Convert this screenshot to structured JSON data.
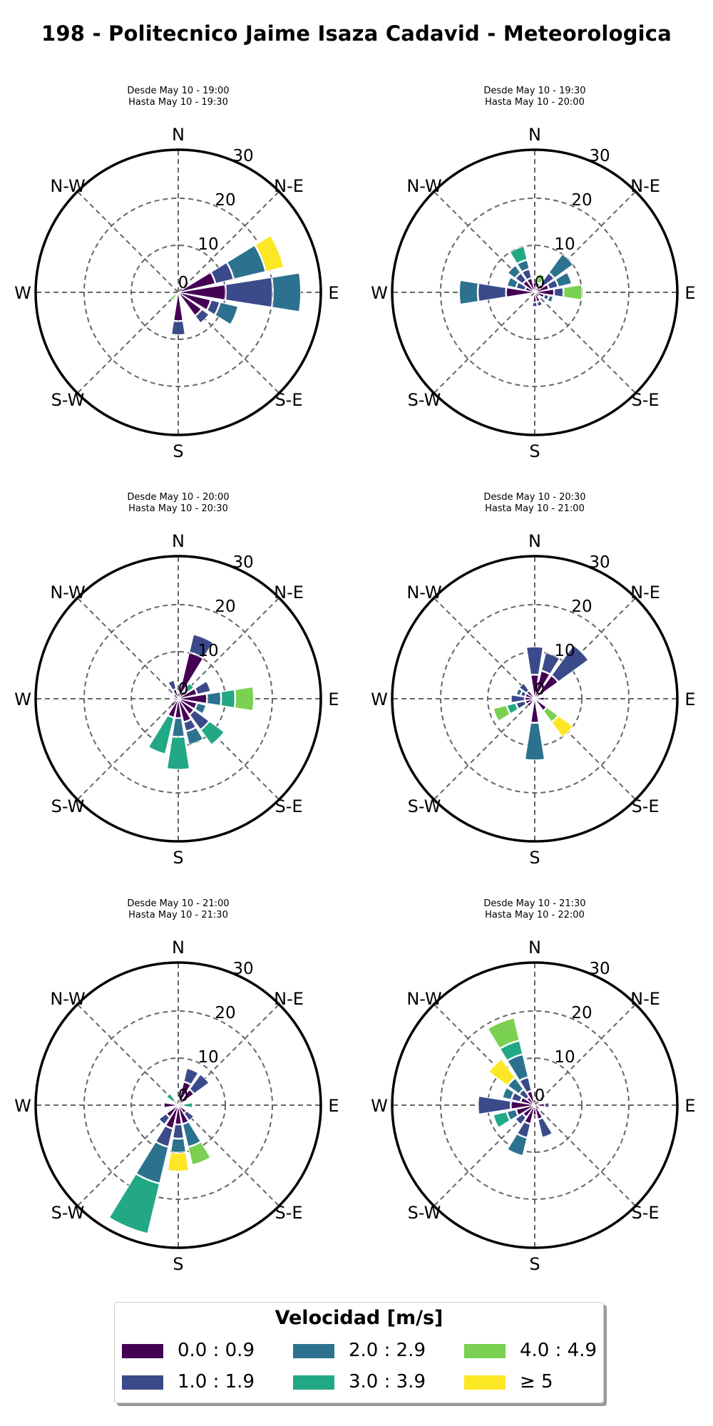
{
  "title": "198 - Politecnico Jaime Isaza Cadavid - Meteorologica",
  "compass_labels": [
    "N",
    "N-E",
    "E",
    "S-E",
    "S",
    "S-W",
    "W",
    "N-W"
  ],
  "radial_ticks": [
    "0",
    "10",
    "20",
    "30"
  ],
  "legend": {
    "title": "Velocidad [m/s]",
    "items": [
      {
        "label": "0.0 : 0.9",
        "color": "#440154"
      },
      {
        "label": "1.0 : 1.9",
        "color": "#3b4a8a"
      },
      {
        "label": "2.0 : 2.9",
        "color": "#2c728e"
      },
      {
        "label": "3.0 : 3.9",
        "color": "#22a884"
      },
      {
        "label": "4.0 : 4.9",
        "color": "#7ad151"
      },
      {
        "label": "≥ 5",
        "color": "#fde725"
      }
    ]
  },
  "chart_data": [
    {
      "type": "windrose",
      "subtitle": [
        "Desde May 10 - 19:00",
        "Hasta May 10 - 19:30"
      ],
      "rlim": [
        0,
        30
      ],
      "units": "frequency",
      "bins": [
        "0.0 : 0.9",
        "1.0 : 1.9",
        "2.0 : 2.9",
        "3.0 : 3.9",
        "4.0 : 4.9",
        "≥ 5"
      ],
      "directions": [
        {
          "angle": 67.5,
          "values": [
            8,
            4,
            7,
            0,
            0,
            4
          ]
        },
        {
          "angle": 90,
          "values": [
            10,
            10,
            6,
            0,
            0,
            0
          ]
        },
        {
          "angle": 112.5,
          "values": [
            7,
            2,
            4,
            0,
            0,
            0
          ]
        },
        {
          "angle": 135,
          "values": [
            6,
            2,
            0,
            0,
            0,
            0
          ]
        },
        {
          "angle": 180,
          "values": [
            6,
            3,
            0,
            0,
            0,
            0
          ]
        },
        {
          "angle": 225,
          "values": [
            0,
            0,
            0,
            0,
            2,
            0
          ]
        }
      ]
    },
    {
      "type": "windrose",
      "subtitle": [
        "Desde May 10 - 19:30",
        "Hasta May 10 - 20:00"
      ],
      "rlim": [
        0,
        30
      ],
      "units": "frequency",
      "bins": [
        "0.0 : 0.9",
        "1.0 : 1.9",
        "2.0 : 2.9",
        "3.0 : 3.9",
        "4.0 : 4.9",
        "≥ 5"
      ],
      "directions": [
        {
          "angle": 0,
          "values": [
            2,
            0,
            0,
            0,
            0,
            0
          ]
        },
        {
          "angle": 22.5,
          "values": [
            1,
            1,
            0,
            0,
            2,
            0
          ]
        },
        {
          "angle": 45,
          "values": [
            2,
            3,
            5,
            0,
            0,
            0
          ]
        },
        {
          "angle": 67.5,
          "values": [
            3,
            2,
            3,
            0,
            0,
            0
          ]
        },
        {
          "angle": 90,
          "values": [
            4,
            2,
            0,
            0,
            4,
            0
          ]
        },
        {
          "angle": 112.5,
          "values": [
            2,
            1,
            1,
            0,
            0,
            0
          ]
        },
        {
          "angle": 157.5,
          "values": [
            2,
            1,
            0,
            0,
            0,
            0
          ]
        },
        {
          "angle": 180,
          "values": [
            2,
            1,
            0,
            0,
            0,
            0
          ]
        },
        {
          "angle": 270,
          "values": [
            6,
            6,
            4,
            0,
            0,
            0
          ]
        },
        {
          "angle": 292.5,
          "values": [
            2,
            2,
            2,
            0,
            0,
            0
          ]
        },
        {
          "angle": 315,
          "values": [
            3,
            2,
            2,
            0,
            0,
            0
          ]
        },
        {
          "angle": 337.5,
          "values": [
            3,
            2,
            2,
            3,
            0,
            0
          ]
        }
      ]
    },
    {
      "type": "windrose",
      "subtitle": [
        "Desde May 10 - 20:00",
        "Hasta May 10 - 20:30"
      ],
      "rlim": [
        0,
        30
      ],
      "units": "frequency",
      "bins": [
        "0.0 : 0.9",
        "1.0 : 1.9",
        "2.0 : 2.9",
        "3.0 : 3.9",
        "4.0 : 4.9",
        "≥ 5"
      ],
      "directions": [
        {
          "angle": 22.5,
          "values": [
            10,
            4,
            0,
            0,
            0,
            0
          ]
        },
        {
          "angle": 45,
          "values": [
            2,
            0,
            0,
            2,
            0,
            0
          ]
        },
        {
          "angle": 67.5,
          "values": [
            4,
            3,
            0,
            0,
            0,
            0
          ]
        },
        {
          "angle": 90,
          "values": [
            6,
            0,
            3,
            3,
            4,
            0
          ]
        },
        {
          "angle": 112.5,
          "values": [
            4,
            0,
            2,
            0,
            0,
            0
          ]
        },
        {
          "angle": 135,
          "values": [
            4,
            4,
            0,
            4,
            0,
            0
          ]
        },
        {
          "angle": 157.5,
          "values": [
            5,
            2,
            3,
            0,
            0,
            0
          ]
        },
        {
          "angle": 180,
          "values": [
            4,
            0,
            4,
            7,
            0,
            0
          ]
        },
        {
          "angle": 191,
          "values": [
            0,
            0,
            0,
            0,
            0,
            0
          ]
        },
        {
          "angle": 202.5,
          "values": [
            4,
            0,
            0,
            8,
            0,
            0
          ]
        },
        {
          "angle": 225,
          "values": [
            2,
            0,
            0,
            0,
            0,
            0
          ]
        },
        {
          "angle": 270,
          "values": [
            1,
            0,
            0,
            0,
            0,
            0
          ]
        },
        {
          "angle": 337.5,
          "values": [
            2,
            2,
            0,
            0,
            0,
            0
          ]
        }
      ]
    },
    {
      "type": "windrose",
      "subtitle": [
        "Desde May 10 - 20:30",
        "Hasta May 10 - 21:00"
      ],
      "rlim": [
        0,
        30
      ],
      "units": "frequency",
      "bins": [
        "0.0 : 0.9",
        "1.0 : 1.9",
        "2.0 : 2.9",
        "3.0 : 3.9",
        "4.0 : 4.9",
        "≥ 5"
      ],
      "directions": [
        {
          "angle": 0,
          "values": [
            5,
            6,
            0,
            0,
            0,
            0
          ]
        },
        {
          "angle": 22.5,
          "values": [
            6,
            4,
            0,
            0,
            0,
            0
          ]
        },
        {
          "angle": 45,
          "values": [
            6,
            8,
            0,
            0,
            0,
            0
          ]
        },
        {
          "angle": 90,
          "values": [
            2,
            0,
            0,
            0,
            0,
            0
          ]
        },
        {
          "angle": 135,
          "values": [
            3,
            0,
            0,
            0,
            3,
            4
          ]
        },
        {
          "angle": 180,
          "values": [
            5,
            0,
            8,
            0,
            0,
            0
          ]
        },
        {
          "angle": 225,
          "values": [
            2,
            0,
            0,
            0,
            0,
            0
          ]
        },
        {
          "angle": 247.5,
          "values": [
            2,
            2,
            0,
            2,
            3,
            0
          ]
        },
        {
          "angle": 270,
          "values": [
            2,
            3,
            0,
            0,
            0,
            0
          ]
        },
        {
          "angle": 292.5,
          "values": [
            2,
            1,
            1,
            0,
            0,
            0
          ]
        },
        {
          "angle": 315,
          "values": [
            2,
            2,
            0,
            0,
            0,
            0
          ]
        }
      ]
    },
    {
      "type": "windrose",
      "subtitle": [
        "Desde May 10 - 21:00",
        "Hasta May 10 - 21:30"
      ],
      "rlim": [
        0,
        30
      ],
      "units": "frequency",
      "bins": [
        "0.0 : 0.9",
        "1.0 : 1.9",
        "2.0 : 2.9",
        "3.0 : 3.9",
        "4.0 : 4.9",
        "≥ 5"
      ],
      "directions": [
        {
          "angle": 22.5,
          "values": [
            5,
            3,
            0,
            0,
            0,
            0
          ]
        },
        {
          "angle": 45,
          "values": [
            4,
            4,
            0,
            0,
            0,
            0
          ]
        },
        {
          "angle": 90,
          "values": [
            1,
            0,
            0,
            2,
            0,
            0
          ]
        },
        {
          "angle": 135,
          "values": [
            2,
            2,
            0,
            0,
            0,
            0
          ]
        },
        {
          "angle": 157.5,
          "values": [
            4,
            0,
            5,
            0,
            4,
            0
          ]
        },
        {
          "angle": 180,
          "values": [
            4,
            3,
            3,
            0,
            0,
            4
          ]
        },
        {
          "angle": 202.5,
          "values": [
            5,
            4,
            8,
            11,
            0,
            0
          ]
        },
        {
          "angle": 225,
          "values": [
            3,
            2,
            0,
            0,
            0,
            0
          ]
        },
        {
          "angle": 270,
          "values": [
            3,
            0,
            0,
            0,
            0,
            0
          ]
        },
        {
          "angle": 315,
          "values": [
            1,
            0,
            0,
            2,
            0,
            0
          ]
        }
      ]
    },
    {
      "type": "windrose",
      "subtitle": [
        "Desde May 10 - 21:30",
        "Hasta May 10 - 22:00"
      ],
      "rlim": [
        0,
        30
      ],
      "units": "frequency",
      "bins": [
        "0.0 : 0.9",
        "1.0 : 1.9",
        "2.0 : 2.9",
        "3.0 : 3.9",
        "4.0 : 4.9",
        "≥ 5"
      ],
      "directions": [
        {
          "angle": 90,
          "values": [
            2,
            1,
            0,
            0,
            0,
            0
          ]
        },
        {
          "angle": 157.5,
          "values": [
            3,
            4,
            0,
            0,
            0,
            0
          ]
        },
        {
          "angle": 180,
          "values": [
            2,
            0,
            0,
            0,
            0,
            0
          ]
        },
        {
          "angle": 202.5,
          "values": [
            4,
            3,
            4,
            0,
            0,
            0
          ]
        },
        {
          "angle": 225,
          "values": [
            3,
            2,
            0,
            0,
            0,
            0
          ]
        },
        {
          "angle": 247.5,
          "values": [
            4,
            0,
            2,
            3,
            0,
            0
          ]
        },
        {
          "angle": 270,
          "values": [
            5,
            7,
            0,
            0,
            0,
            0
          ]
        },
        {
          "angle": 292.5,
          "values": [
            3,
            2,
            2,
            0,
            0,
            0
          ]
        },
        {
          "angle": 315,
          "values": [
            2,
            2,
            3,
            0,
            0,
            5
          ]
        },
        {
          "angle": 337.5,
          "values": [
            3,
            3,
            5,
            3,
            5,
            0
          ]
        }
      ]
    }
  ]
}
